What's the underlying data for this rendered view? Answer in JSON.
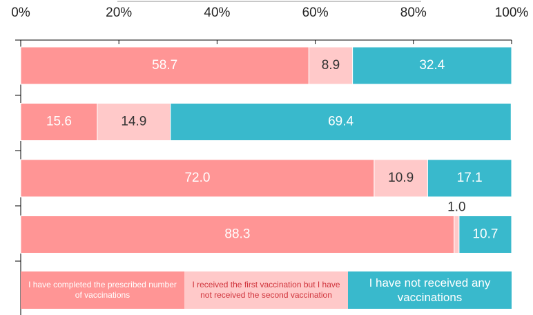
{
  "chart_data": {
    "type": "stacked_barh",
    "categories": [
      null,
      null,
      null,
      null
    ],
    "series": [
      {
        "name": "I have completed the prescribed number of vaccinations",
        "color": "#ff9595",
        "values": [
          58.7,
          15.6,
          72.0,
          88.3
        ],
        "value_labels": [
          "58.7",
          "15.6",
          "72.0",
          "88.3"
        ]
      },
      {
        "name": "I received the first vaccination but I have not received the second vaccination",
        "color": "#ffc9c9",
        "values": [
          8.9,
          14.9,
          10.9,
          1.0
        ],
        "value_labels": [
          "8.9",
          "14.9",
          "10.9",
          "1.0"
        ]
      },
      {
        "name": "I have not received any vaccinations",
        "color": "#39b9cc",
        "values": [
          32.4,
          69.4,
          17.1,
          10.7
        ],
        "value_labels": [
          "32.4",
          "69.4",
          "17.1",
          "10.7"
        ]
      }
    ],
    "xlim": [
      0,
      100
    ],
    "xticks": [
      {
        "value": 0,
        "label": "0%"
      },
      {
        "value": 20,
        "label": "20%"
      },
      {
        "value": 40,
        "label": "40%"
      },
      {
        "value": 60,
        "label": "60%"
      },
      {
        "value": 80,
        "label": "80%"
      },
      {
        "value": 100,
        "label": "100%"
      }
    ],
    "legend": "bottom"
  }
}
